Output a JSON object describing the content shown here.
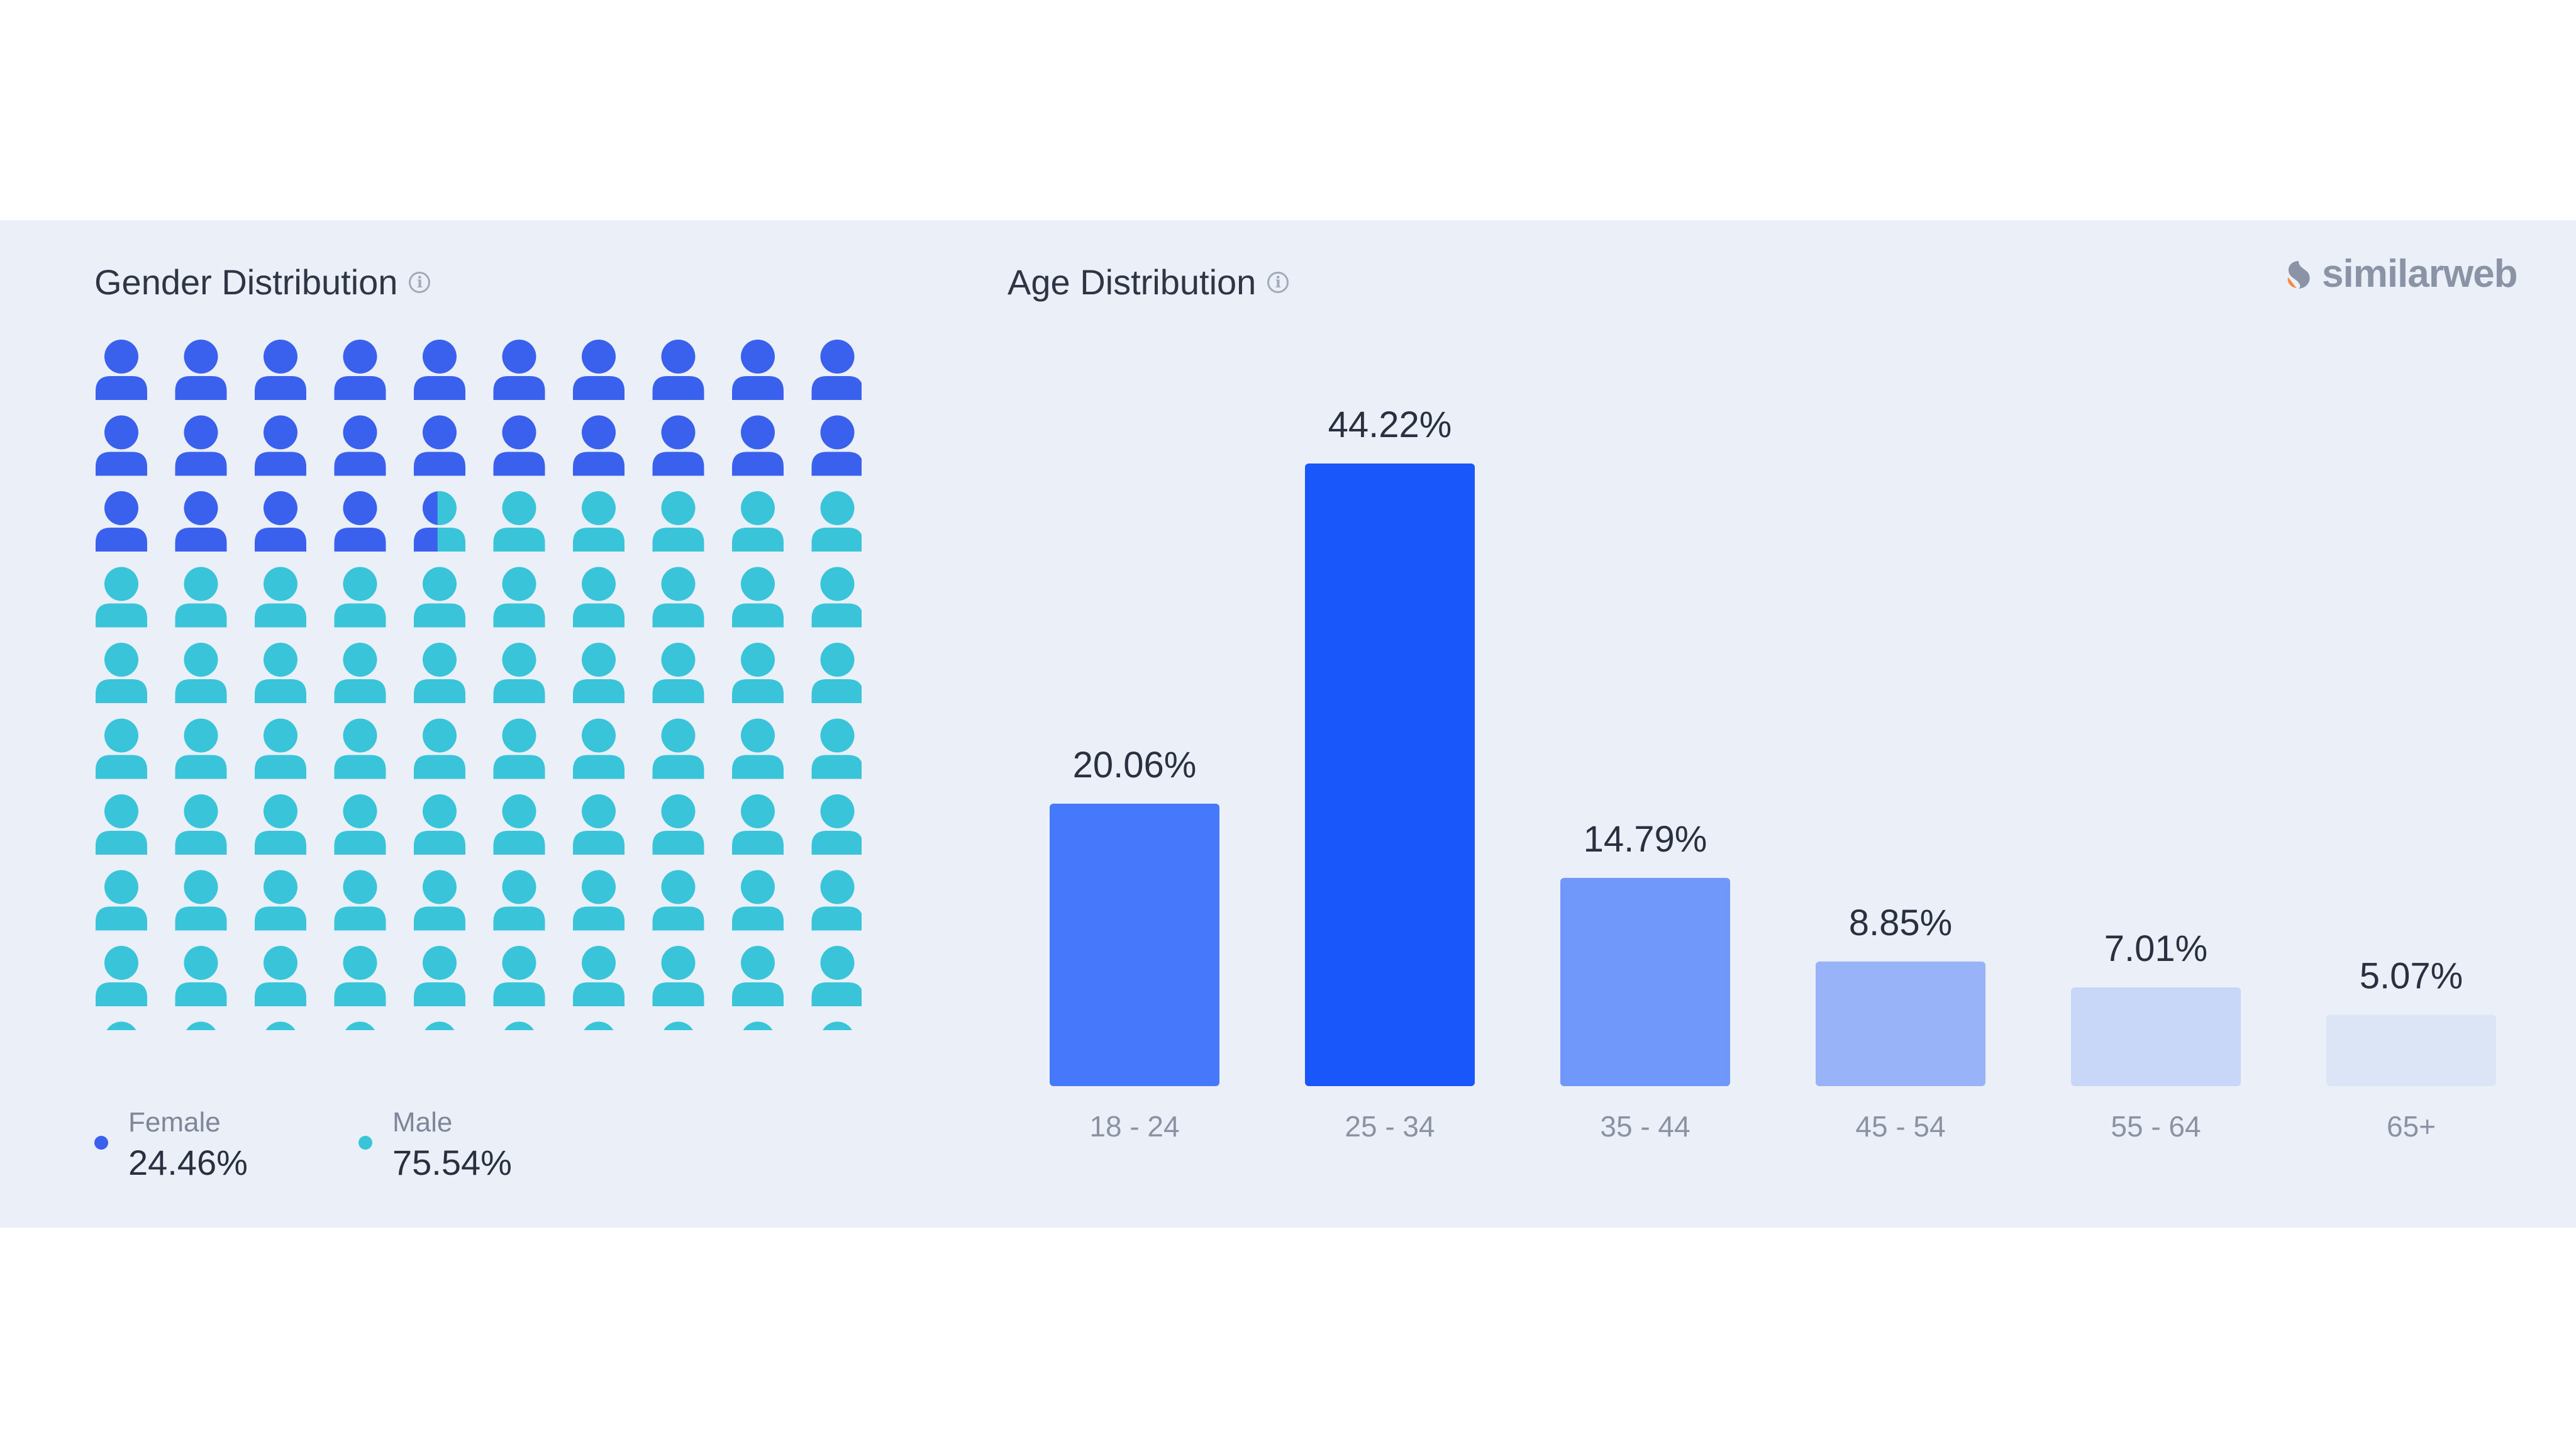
{
  "colors": {
    "female": "#3a60ee",
    "male": "#39c4d9",
    "panel_bg": "#ebf0f8"
  },
  "gender": {
    "title": "Gender Distribution",
    "info_icon": "info-icon",
    "icon_count": 100,
    "female": {
      "label": "Female",
      "value_text": "24.46%",
      "value": 24.46
    },
    "male": {
      "label": "Male",
      "value_text": "75.54%",
      "value": 75.54
    }
  },
  "age": {
    "title": "Age Distribution",
    "info_icon": "info-icon"
  },
  "logo": {
    "text": "similarweb",
    "icon": "similarweb-logo-icon"
  },
  "chart_data": [
    {
      "type": "bar",
      "title": "Age Distribution",
      "categories": [
        "18 - 24",
        "25 - 34",
        "35 - 44",
        "45 - 54",
        "55 - 64",
        "65+"
      ],
      "values": [
        20.06,
        44.22,
        14.79,
        8.85,
        7.01,
        5.07
      ],
      "value_labels": [
        "20.06%",
        "44.22%",
        "14.79%",
        "8.85%",
        "7.01%",
        "5.07%"
      ],
      "bar_colors": [
        "#4678fb",
        "#1957fa",
        "#7097fa",
        "#99b3f9",
        "#c8d6f7",
        "#dce5f5"
      ],
      "ylim": [
        0,
        44.22
      ],
      "grid": false
    },
    {
      "type": "waffle",
      "title": "Gender Distribution",
      "categories": [
        "Female",
        "Male"
      ],
      "values": [
        24.46,
        75.54
      ]
    }
  ]
}
